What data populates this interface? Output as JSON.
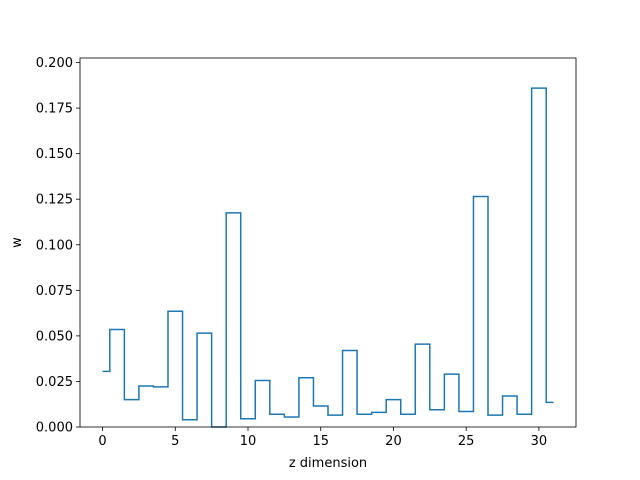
{
  "chart_data": {
    "type": "line",
    "drawstyle": "steps-mid",
    "xlabel": "z dimension",
    "ylabel": "w",
    "xlim": [
      -1.55,
      32.55
    ],
    "ylim": [
      0.0,
      0.2025
    ],
    "xticks": [
      0,
      5,
      10,
      15,
      20,
      25,
      30
    ],
    "xtick_labels": [
      "0",
      "5",
      "10",
      "15",
      "20",
      "25",
      "30"
    ],
    "yticks": [
      0.0,
      0.025,
      0.05,
      0.075,
      0.1,
      0.125,
      0.15,
      0.175,
      0.2
    ],
    "ytick_labels": [
      "0.000",
      "0.025",
      "0.050",
      "0.075",
      "0.100",
      "0.125",
      "0.150",
      "0.175",
      "0.200"
    ],
    "grid": false,
    "line_color": "#1f77b4",
    "series": [
      {
        "x": [
          0,
          1,
          2,
          3,
          4,
          5,
          6,
          7,
          8,
          9,
          10,
          11,
          12,
          13,
          14,
          15,
          16,
          17,
          18,
          19,
          20,
          21,
          22,
          23,
          24,
          25,
          26,
          27,
          28,
          29,
          30,
          31
        ],
        "values": [
          0.0305,
          0.0535,
          0.015,
          0.0225,
          0.022,
          0.0635,
          0.004,
          0.0515,
          0.0,
          0.1175,
          0.0045,
          0.0255,
          0.007,
          0.0055,
          0.027,
          0.0115,
          0.0065,
          0.042,
          0.007,
          0.008,
          0.015,
          0.007,
          0.0455,
          0.0095,
          0.029,
          0.0085,
          0.1265,
          0.0065,
          0.017,
          0.007,
          0.186,
          0.0135
        ]
      }
    ]
  }
}
